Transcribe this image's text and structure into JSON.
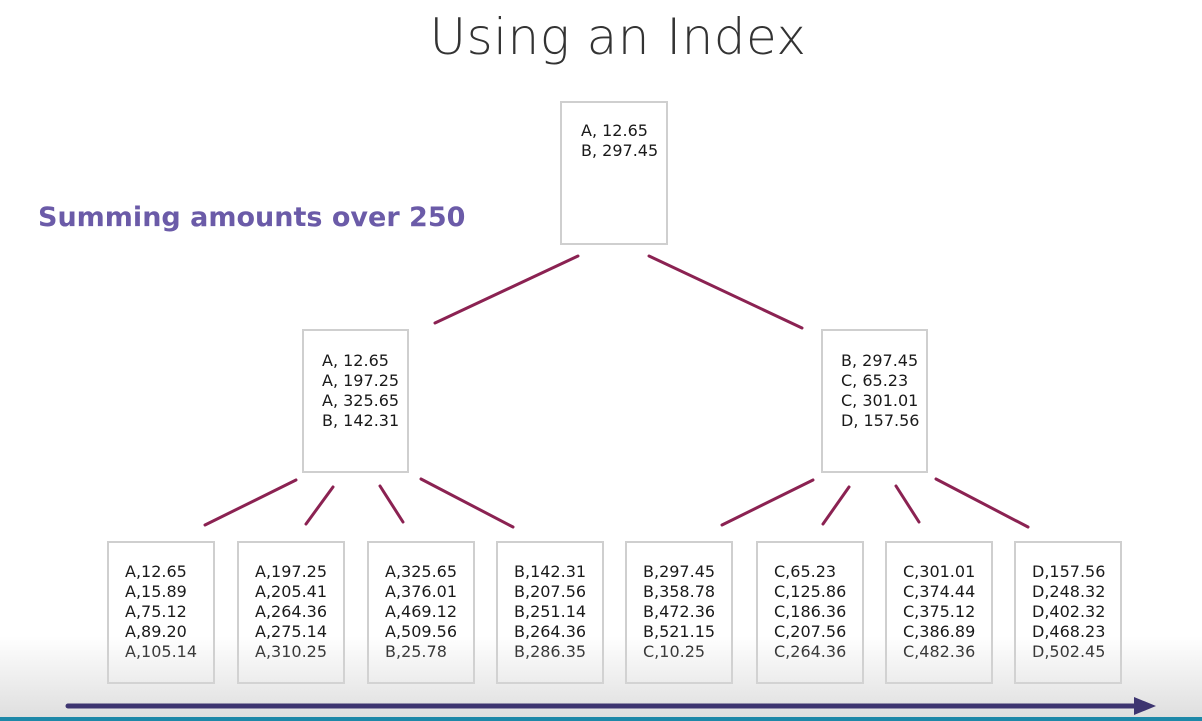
{
  "slide": {
    "title": "Using an Index",
    "subtitle": "Summing amounts over 250"
  },
  "tree": {
    "root": [
      "A, 12.65",
      "B, 297.45"
    ],
    "internal": [
      [
        "A, 12.65",
        "A, 197.25",
        "A, 325.65",
        "B, 142.31"
      ],
      [
        "B, 297.45",
        "C, 65.23",
        "C, 301.01",
        "D, 157.56"
      ]
    ],
    "leaves": [
      [
        "A,12.65",
        "A,15.89",
        "A,75.12",
        "A,89.20",
        "A,105.14"
      ],
      [
        "A,197.25",
        "A,205.41",
        "A,264.36",
        "A,275.14",
        "A,310.25"
      ],
      [
        "A,325.65",
        "A,376.01",
        "A,469.12",
        "A,509.56",
        "B,25.78"
      ],
      [
        "B,142.31",
        "B,207.56",
        "B,251.14",
        "B,264.36",
        "B,286.35"
      ],
      [
        "B,297.45",
        "B,358.78",
        "B,472.36",
        "B,521.15",
        "C,10.25"
      ],
      [
        "C,65.23",
        "C,125.86",
        "C,186.36",
        "C,207.56",
        "C,264.36"
      ],
      [
        "C,301.01",
        "C,374.44",
        "C,375.12",
        "C,386.89",
        "C,482.36"
      ],
      [
        "D,157.56",
        "D,248.32",
        "D,402.32",
        "D,468.23",
        "D,502.45"
      ]
    ]
  },
  "colors": {
    "edge": "#8b2252",
    "node_border": "#cfcfcf",
    "subtitle": "#6b5ba8",
    "progress_arrow": "#3d3570"
  }
}
